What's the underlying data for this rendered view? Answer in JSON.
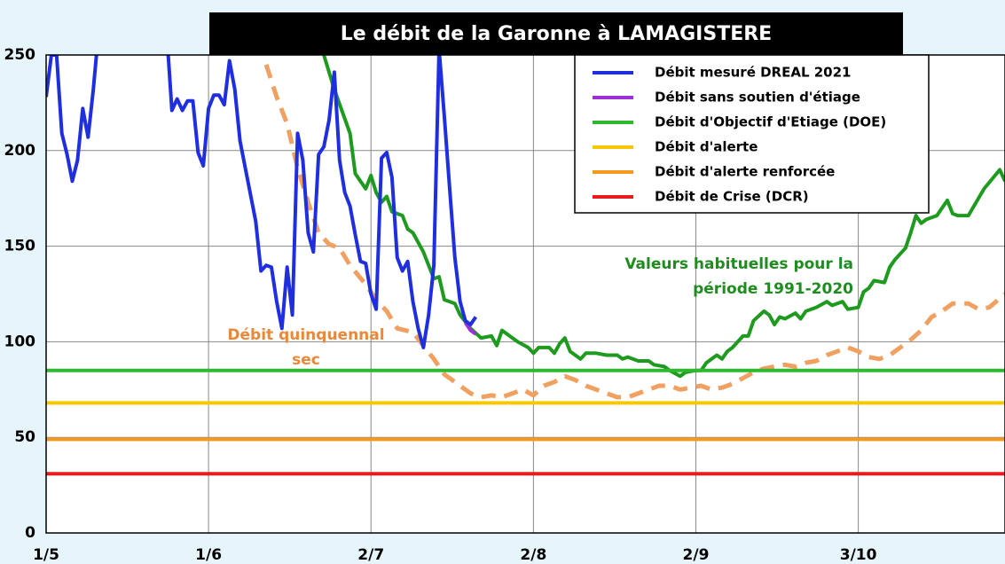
{
  "chart_data": {
    "type": "line",
    "title": "Le débit de la Garonne à LAMAGISTERE",
    "xlim": [
      0,
      183
    ],
    "ylim": [
      0,
      250
    ],
    "xticks": [
      {
        "value": 0,
        "label": "1/5"
      },
      {
        "value": 31,
        "label": "1/6"
      },
      {
        "value": 62,
        "label": "2/7"
      },
      {
        "value": 93,
        "label": "2/8"
      },
      {
        "value": 124,
        "label": "2/9"
      },
      {
        "value": 155,
        "label": "3/10"
      }
    ],
    "yticks": [
      0,
      50,
      100,
      150,
      200,
      250
    ],
    "grid": true,
    "legend": "upper right",
    "series": [
      {
        "name": "Débit mesuré DREAL 2021",
        "color": "#1f2fe0",
        "x": [
          0,
          1,
          2,
          3,
          4,
          5,
          6,
          7,
          8,
          9,
          10,
          23,
          24,
          25,
          26,
          27,
          28,
          29,
          30,
          31,
          32,
          33,
          34,
          35,
          36,
          37,
          38,
          39,
          40,
          41,
          42,
          43,
          44,
          45,
          46,
          47,
          48,
          49,
          50,
          51,
          52,
          53,
          54,
          55,
          56,
          57,
          58,
          59,
          60,
          61,
          62,
          63,
          64,
          65,
          66,
          67,
          68,
          69,
          70,
          71,
          72,
          73,
          74,
          75,
          76,
          77,
          78,
          79,
          80,
          81,
          82
        ],
        "values": [
          228,
          250,
          250,
          209,
          198,
          184,
          195,
          222,
          207,
          232,
          262,
          262,
          221,
          227,
          221,
          226,
          226,
          199,
          192,
          222,
          229,
          229,
          224,
          247,
          232,
          205,
          191,
          177,
          163,
          137,
          140,
          139,
          121,
          107,
          139,
          114,
          209,
          195,
          157,
          147,
          198,
          202,
          216,
          241,
          195,
          178,
          171,
          156,
          142,
          141,
          125,
          117,
          196,
          199,
          186,
          144,
          137,
          142,
          121,
          107,
          97,
          114,
          140,
          253,
          218,
          181,
          144,
          121,
          111,
          109,
          113
        ]
      },
      {
        "name": "Débit sans soutien d'étiage",
        "color": "#9b30d9",
        "x": [
          80,
          81,
          82
        ],
        "values": [
          110,
          106,
          104
        ]
      },
      {
        "name": "Débit d'Objectif d'Etiage (DOE)",
        "color": "#2db82d",
        "x": [
          0,
          183
        ],
        "values": [
          85,
          85
        ]
      },
      {
        "name": "Débit d'alerte",
        "color": "#f5c800",
        "x": [
          0,
          183
        ],
        "values": [
          68,
          68
        ]
      },
      {
        "name": "Débit d'alerte renforcée",
        "color": "#f59a1e",
        "x": [
          0,
          183
        ],
        "values": [
          49,
          49
        ]
      },
      {
        "name": "Débit de Crise (DCR)",
        "color": "#e81c1c",
        "x": [
          0,
          183
        ],
        "values": [
          31,
          31
        ]
      },
      {
        "color": "#1e9a1e",
        "x": [
          53,
          55,
          58,
          59,
          61,
          62,
          63,
          64,
          65,
          66,
          68,
          69,
          70,
          72,
          73,
          74,
          75,
          76,
          78,
          79,
          81,
          83,
          85,
          86,
          87,
          89,
          90,
          92,
          93,
          94,
          96,
          97,
          98,
          99,
          100,
          102,
          103,
          105,
          107,
          109,
          110,
          111,
          113,
          115,
          116,
          118,
          119,
          121,
          122,
          124,
          125,
          126,
          128,
          129,
          130,
          131,
          133,
          134,
          135,
          137,
          138,
          139,
          140,
          141,
          143,
          144,
          145,
          147,
          149,
          150,
          152,
          153,
          155,
          156,
          157,
          158,
          160,
          161,
          162,
          164,
          165,
          166,
          167,
          168,
          170,
          171,
          172,
          173,
          174,
          176,
          179,
          182,
          183
        ],
        "values": [
          250,
          232,
          209,
          188,
          180,
          187,
          178,
          173,
          176,
          168,
          166,
          159,
          157,
          147,
          140,
          133,
          134,
          122,
          120,
          114,
          107,
          102,
          103,
          98,
          106,
          102,
          100,
          97,
          94,
          97,
          97,
          94,
          99,
          102,
          95,
          91,
          94,
          94,
          93,
          93,
          91,
          92,
          90,
          90,
          88,
          87,
          85,
          82,
          84,
          85,
          85,
          89,
          93,
          91,
          95,
          97,
          103,
          103,
          111,
          116,
          114,
          109,
          113,
          112,
          115,
          112,
          116,
          118,
          121,
          119,
          121,
          117,
          118,
          126,
          128,
          132,
          131,
          139,
          143,
          149,
          157,
          166,
          162,
          164,
          166,
          170,
          174,
          167,
          166,
          166,
          180,
          190,
          184
        ]
      },
      {
        "color": "#f0a060",
        "dashed": true,
        "x": [
          42,
          44,
          46,
          48,
          50,
          52,
          54,
          56,
          58,
          61,
          63,
          65,
          67,
          70,
          72,
          74,
          76,
          79,
          81,
          83,
          85,
          87,
          89,
          91,
          93,
          95,
          97,
          99,
          101,
          103,
          105,
          107,
          109,
          111,
          113,
          115,
          117,
          119,
          121,
          123,
          125,
          127,
          129,
          131,
          133,
          135,
          137,
          139,
          141,
          143,
          145,
          147,
          149,
          151,
          153,
          155,
          157,
          159,
          161,
          163,
          165,
          167,
          169,
          171,
          173,
          176,
          178,
          180,
          183
        ],
        "values": [
          245,
          228,
          214,
          191,
          173,
          157,
          151,
          149,
          140,
          130,
          122,
          116,
          107,
          105,
          98,
          91,
          83,
          77,
          73,
          71,
          72,
          71,
          73,
          75,
          72,
          77,
          79,
          82,
          80,
          77,
          75,
          73,
          71,
          71,
          73,
          75,
          77,
          77,
          75,
          76,
          77,
          75,
          76,
          78,
          81,
          84,
          86,
          87,
          88,
          87,
          89,
          90,
          93,
          95,
          97,
          95,
          92,
          91,
          93,
          97,
          101,
          106,
          113,
          116,
          120,
          120,
          117,
          118,
          125
        ]
      }
    ],
    "annotations": [
      {
        "lines": [
          "Débit quinquennal",
          "sec"
        ],
        "color": "#e8883a"
      },
      {
        "lines": [
          "Valeurs habituelles pour la",
          "période 1991-2020"
        ],
        "color": "#1e8c1e"
      }
    ]
  }
}
